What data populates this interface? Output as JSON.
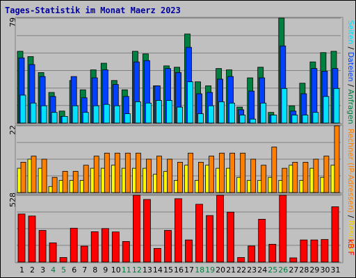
{
  "title": "Tages-Statistik im Monat Maerz 2023",
  "colors": {
    "hits": "#008040",
    "files": "#0040ff",
    "pages": "#00e0ff",
    "visits": "#ffff00",
    "sites": "#ff8000",
    "kbytes": "#ff0000",
    "weekday_label": "#000000",
    "weekend_label": "#008040",
    "panel_bg": "#c0c0c0",
    "grid": "#808080"
  },
  "right_labels": {
    "top": [
      {
        "text": "Anfragen",
        "color": "#008040"
      },
      {
        "text": " / ",
        "color": "#000000"
      },
      {
        "text": "Dateien",
        "color": "#0040ff"
      },
      {
        "text": " / ",
        "color": "#000000"
      },
      {
        "text": "Seiten",
        "color": "#00e0ff"
      }
    ],
    "mid": [
      {
        "text": "Besuche",
        "color": "#ffd000"
      },
      {
        "text": " / ",
        "color": "#000000"
      },
      {
        "text": "Rechner (IP-Adressen)",
        "color": "#ff8000"
      }
    ],
    "bottom": [
      {
        "text": "kB F",
        "color": "#ff0000"
      }
    ]
  },
  "chart_data": [
    {
      "type": "bar",
      "panel": "requests",
      "ymax_label": "79",
      "ylim": [
        0,
        79
      ],
      "categories": [
        "1",
        "2",
        "3",
        "4",
        "5",
        "6",
        "7",
        "8",
        "9",
        "10",
        "11",
        "12",
        "13",
        "14",
        "15",
        "16",
        "17",
        "18",
        "19",
        "20",
        "21",
        "22",
        "23",
        "24",
        "25",
        "26",
        "27",
        "28",
        "29",
        "30",
        "31"
      ],
      "weekend_days": [
        "4",
        "5",
        "11",
        "12",
        "18",
        "19",
        "25",
        "26"
      ],
      "series": [
        {
          "name": "Anfragen",
          "values": [
            54,
            50,
            38,
            23,
            9,
            32,
            25,
            40,
            45,
            32,
            25,
            54,
            52,
            28,
            43,
            42,
            67,
            31,
            28,
            41,
            40,
            12,
            34,
            42,
            8,
            79,
            13,
            30,
            46,
            53,
            54
          ]
        },
        {
          "name": "Dateien",
          "values": [
            49,
            44,
            35,
            20,
            5,
            35,
            19,
            34,
            40,
            29,
            20,
            46,
            47,
            28,
            41,
            38,
            57,
            22,
            23,
            33,
            35,
            10,
            24,
            34,
            6,
            58,
            9,
            22,
            41,
            39,
            41
          ]
        },
        {
          "name": "Seiten",
          "values": [
            21,
            15,
            13,
            8,
            5,
            13,
            8,
            13,
            14,
            13,
            7,
            16,
            15,
            17,
            17,
            12,
            31,
            7,
            13,
            16,
            15,
            6,
            3,
            15,
            6,
            26,
            6,
            6,
            8,
            20,
            26
          ]
        }
      ]
    },
    {
      "type": "bar",
      "panel": "visits",
      "ymax_label": "22",
      "ylim": [
        0,
        22
      ],
      "categories": [
        "1",
        "2",
        "3",
        "4",
        "5",
        "6",
        "7",
        "8",
        "9",
        "10",
        "11",
        "12",
        "13",
        "14",
        "15",
        "16",
        "17",
        "18",
        "19",
        "20",
        "21",
        "22",
        "23",
        "24",
        "25",
        "26",
        "27",
        "28",
        "29",
        "30",
        "31"
      ],
      "series": [
        {
          "name": "Besuche",
          "values": [
            8,
            11,
            8,
            2,
            4,
            4,
            4,
            8,
            8,
            9,
            8,
            8,
            8,
            6,
            7,
            4,
            9,
            4,
            9,
            8,
            8,
            5,
            4,
            4,
            5,
            4,
            9,
            4,
            8,
            5,
            9
          ]
        },
        {
          "name": "Rechner (IP-Adressen)",
          "values": [
            10,
            12,
            11,
            5,
            7,
            7,
            9,
            12,
            13,
            13,
            13,
            13,
            11,
            12,
            11,
            10,
            13,
            10,
            12,
            13,
            13,
            13,
            11,
            9,
            15,
            8,
            10,
            10,
            11,
            12,
            22
          ]
        }
      ]
    },
    {
      "type": "bar",
      "panel": "kbytes",
      "ymax_label": "528",
      "ylim": [
        0,
        528
      ],
      "categories": [
        "1",
        "2",
        "3",
        "4",
        "5",
        "6",
        "7",
        "8",
        "9",
        "10",
        "11",
        "12",
        "13",
        "14",
        "15",
        "16",
        "17",
        "18",
        "19",
        "20",
        "21",
        "22",
        "23",
        "24",
        "25",
        "26",
        "27",
        "28",
        "29",
        "30",
        "31"
      ],
      "series": [
        {
          "name": "kB F",
          "values": [
            380,
            364,
            250,
            152,
            36,
            268,
            126,
            240,
            265,
            238,
            163,
            528,
            495,
            108,
            250,
            501,
            175,
            457,
            368,
            528,
            395,
            36,
            127,
            339,
            141,
            528,
            33,
            175,
            175,
            178,
            437
          ]
        }
      ]
    }
  ]
}
